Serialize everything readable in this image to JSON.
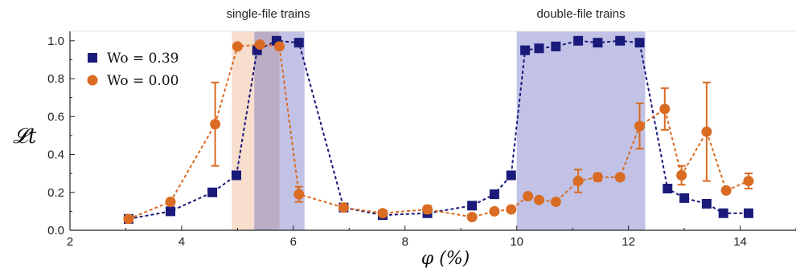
{
  "chart_data": {
    "type": "line",
    "xlabel": "φ (%)",
    "ylabel": "𝓛t",
    "xlim": [
      2,
      15
    ],
    "ylim": [
      0,
      1.05
    ],
    "xticks": [
      "2",
      "4",
      "6",
      "8",
      "10",
      "12",
      "14"
    ],
    "yticks": [
      "0.0",
      "0.2",
      "0.4",
      "0.6",
      "0.8",
      "1.0"
    ],
    "grid": false,
    "legend_position": "top-left",
    "annotations": [
      {
        "text": "single-file trains"
      },
      {
        "text": "double-file trains"
      }
    ],
    "shaded_regions": [
      {
        "x0": 4.9,
        "x1": 5.75,
        "color": "#e8a070",
        "opacity": 0.35
      },
      {
        "x0": 5.3,
        "x1": 6.2,
        "color": "#5b5fbd",
        "opacity": 0.38
      },
      {
        "x0": 10.0,
        "x1": 12.3,
        "color": "#5b5fbd",
        "opacity": 0.38
      }
    ],
    "series": [
      {
        "name": "Wo = 0.39",
        "color": "#1a1a7a",
        "marker": "square",
        "points": [
          [
            3.05,
            0.06
          ],
          [
            3.8,
            0.1
          ],
          [
            4.55,
            0.2
          ],
          [
            4.98,
            0.29
          ],
          [
            5.35,
            0.95
          ],
          [
            5.7,
            1.0
          ],
          [
            6.1,
            0.99
          ],
          [
            6.9,
            0.12
          ],
          [
            7.6,
            0.08
          ],
          [
            8.4,
            0.09
          ],
          [
            9.2,
            0.13
          ],
          [
            9.6,
            0.19
          ],
          [
            9.9,
            0.29
          ],
          [
            10.15,
            0.95
          ],
          [
            10.4,
            0.96
          ],
          [
            10.7,
            0.97
          ],
          [
            11.1,
            1.0
          ],
          [
            11.45,
            0.99
          ],
          [
            11.85,
            1.0
          ],
          [
            12.2,
            0.99
          ],
          [
            12.7,
            0.22
          ],
          [
            13.0,
            0.17
          ],
          [
            13.4,
            0.14
          ],
          [
            13.7,
            0.09
          ],
          [
            14.15,
            0.09
          ]
        ],
        "errors": []
      },
      {
        "name": "Wo = 0.00",
        "color": "#d96b22",
        "marker": "circle",
        "points": [
          [
            3.05,
            0.06
          ],
          [
            3.8,
            0.15
          ],
          [
            4.6,
            0.56
          ],
          [
            5.0,
            0.97
          ],
          [
            5.4,
            0.98
          ],
          [
            5.75,
            0.97
          ],
          [
            6.1,
            0.19
          ],
          [
            6.9,
            0.12
          ],
          [
            7.6,
            0.09
          ],
          [
            8.4,
            0.11
          ],
          [
            9.2,
            0.07
          ],
          [
            9.6,
            0.1
          ],
          [
            9.9,
            0.11
          ],
          [
            10.2,
            0.18
          ],
          [
            10.4,
            0.16
          ],
          [
            10.7,
            0.15
          ],
          [
            11.1,
            0.26
          ],
          [
            11.45,
            0.28
          ],
          [
            11.85,
            0.28
          ],
          [
            12.2,
            0.55
          ],
          [
            12.65,
            0.64
          ],
          [
            12.95,
            0.29
          ],
          [
            13.4,
            0.52
          ],
          [
            13.75,
            0.21
          ],
          [
            14.15,
            0.26
          ]
        ],
        "errors": [
          [
            0,
            0
          ],
          [
            0,
            0
          ],
          [
            0.22,
            0.22
          ],
          [
            0,
            0
          ],
          [
            0,
            0
          ],
          [
            0,
            0
          ],
          [
            0.04,
            0.04
          ],
          [
            0,
            0
          ],
          [
            0,
            0
          ],
          [
            0.02,
            0.02
          ],
          [
            0,
            0
          ],
          [
            0,
            0
          ],
          [
            0,
            0
          ],
          [
            0,
            0
          ],
          [
            0,
            0
          ],
          [
            0,
            0
          ],
          [
            0.06,
            0.06
          ],
          [
            0.02,
            0.02
          ],
          [
            0,
            0
          ],
          [
            0.12,
            0.12
          ],
          [
            0.11,
            0.11
          ],
          [
            0.05,
            0.05
          ],
          [
            0.26,
            0.26
          ],
          [
            0,
            0
          ],
          [
            0.04,
            0.04
          ]
        ]
      }
    ]
  }
}
